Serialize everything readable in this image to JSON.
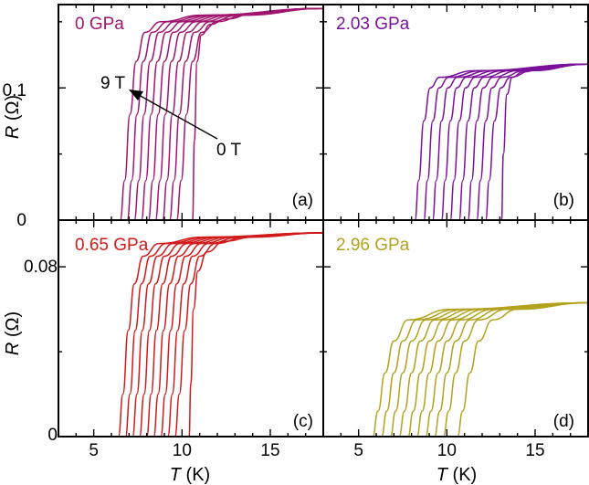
{
  "chart_data": [
    {
      "type": "line",
      "panel": "(a)",
      "pressure_label": "0 GPa",
      "color": "#a0156e",
      "x_range": [
        3,
        18
      ],
      "y_range": [
        0,
        0.163
      ],
      "x_ticks": [
        "5",
        "10",
        "15"
      ],
      "y_ticks": [
        {
          "value": 0,
          "label": "0"
        },
        {
          "value": 0.1,
          "label": "0.1"
        }
      ],
      "y_axis_label": "R (Ω)",
      "field_arrow": {
        "from_label": "0 T",
        "to_label": "9 T"
      },
      "r_normal": 0.155,
      "normal_slope": 0.0007,
      "series": [
        {
          "field_T": 0,
          "x": [
            10.6,
            10.7,
            10.85,
            11.1,
            11.6,
            12.5,
            14.0,
            18.0
          ],
          "y": [
            0.0,
            0.06,
            0.12,
            0.14,
            0.148,
            0.152,
            0.156,
            0.16
          ]
        },
        {
          "field_T": 1,
          "x": [
            9.7,
            9.95,
            10.25,
            10.6,
            11.1,
            12.0,
            13.5,
            18.0
          ],
          "y": [
            0.0,
            0.03,
            0.08,
            0.12,
            0.142,
            0.15,
            0.155,
            0.16
          ]
        },
        {
          "field_T": 2,
          "x": [
            9.3,
            9.55,
            9.85,
            10.2,
            10.7,
            11.6,
            13.2,
            18.0
          ],
          "y": [
            0.0,
            0.03,
            0.08,
            0.12,
            0.142,
            0.15,
            0.155,
            0.16
          ]
        },
        {
          "field_T": 3,
          "x": [
            8.9,
            9.15,
            9.45,
            9.8,
            10.3,
            11.2,
            12.9,
            18.0
          ],
          "y": [
            0.0,
            0.03,
            0.08,
            0.12,
            0.142,
            0.15,
            0.155,
            0.16
          ]
        },
        {
          "field_T": 4,
          "x": [
            8.5,
            8.75,
            9.05,
            9.4,
            9.9,
            10.8,
            12.6,
            18.0
          ],
          "y": [
            0.0,
            0.03,
            0.08,
            0.12,
            0.142,
            0.15,
            0.155,
            0.16
          ]
        },
        {
          "field_T": 5,
          "x": [
            8.1,
            8.35,
            8.65,
            9.0,
            9.5,
            10.4,
            12.3,
            18.0
          ],
          "y": [
            0.0,
            0.03,
            0.08,
            0.12,
            0.142,
            0.15,
            0.155,
            0.16
          ]
        },
        {
          "field_T": 6,
          "x": [
            7.7,
            7.95,
            8.25,
            8.6,
            9.1,
            10.0,
            12.0,
            18.0
          ],
          "y": [
            0.0,
            0.03,
            0.08,
            0.12,
            0.142,
            0.15,
            0.155,
            0.16
          ]
        },
        {
          "field_T": 7,
          "x": [
            7.3,
            7.55,
            7.85,
            8.2,
            8.7,
            9.6,
            11.7,
            18.0
          ],
          "y": [
            0.0,
            0.03,
            0.08,
            0.12,
            0.142,
            0.15,
            0.155,
            0.16
          ]
        },
        {
          "field_T": 8,
          "x": [
            6.9,
            7.15,
            7.45,
            7.8,
            8.3,
            9.2,
            11.4,
            18.0
          ],
          "y": [
            0.0,
            0.03,
            0.08,
            0.12,
            0.142,
            0.15,
            0.155,
            0.16
          ]
        },
        {
          "field_T": 9,
          "x": [
            6.5,
            6.75,
            7.05,
            7.4,
            7.9,
            8.8,
            11.1,
            18.0
          ],
          "y": [
            0.0,
            0.03,
            0.08,
            0.12,
            0.142,
            0.15,
            0.155,
            0.16
          ]
        }
      ]
    },
    {
      "type": "line",
      "panel": "(b)",
      "pressure_label": "2.03 GPa",
      "color": "#7a119a",
      "x_range": [
        3,
        18
      ],
      "y_range": [
        0,
        0.163
      ],
      "x_ticks": [
        "5",
        "10",
        "15"
      ],
      "y_ticks": [
        {
          "value": 0,
          "label": ""
        },
        {
          "value": 0.1,
          "label": ""
        }
      ],
      "y_axis_label": "",
      "series": [
        {
          "field_T": 0,
          "x": [
            13.1,
            13.2,
            13.4,
            13.7,
            14.3,
            15.5,
            18.0
          ],
          "y": [
            0.0,
            0.05,
            0.095,
            0.108,
            0.112,
            0.115,
            0.118
          ]
        },
        {
          "field_T": 1,
          "x": [
            12.2,
            12.4,
            12.7,
            13.05,
            13.6,
            14.8,
            18.0
          ],
          "y": [
            0.0,
            0.03,
            0.075,
            0.1,
            0.108,
            0.113,
            0.118
          ]
        },
        {
          "field_T": 2,
          "x": [
            11.7,
            11.9,
            12.2,
            12.55,
            13.1,
            14.4,
            18.0
          ],
          "y": [
            0.0,
            0.03,
            0.075,
            0.1,
            0.108,
            0.113,
            0.118
          ]
        },
        {
          "field_T": 3,
          "x": [
            11.2,
            11.4,
            11.7,
            12.05,
            12.6,
            14.0,
            18.0
          ],
          "y": [
            0.0,
            0.03,
            0.075,
            0.1,
            0.108,
            0.113,
            0.118
          ]
        },
        {
          "field_T": 4,
          "x": [
            10.7,
            10.9,
            11.2,
            11.55,
            12.1,
            13.6,
            18.0
          ],
          "y": [
            0.0,
            0.03,
            0.075,
            0.1,
            0.108,
            0.113,
            0.118
          ]
        },
        {
          "field_T": 5,
          "x": [
            10.2,
            10.4,
            10.7,
            11.05,
            11.6,
            13.2,
            18.0
          ],
          "y": [
            0.0,
            0.03,
            0.075,
            0.1,
            0.108,
            0.113,
            0.118
          ]
        },
        {
          "field_T": 6,
          "x": [
            9.7,
            9.9,
            10.2,
            10.55,
            11.1,
            12.8,
            18.0
          ],
          "y": [
            0.0,
            0.03,
            0.075,
            0.1,
            0.108,
            0.113,
            0.118
          ]
        },
        {
          "field_T": 7,
          "x": [
            9.2,
            9.4,
            9.7,
            10.05,
            10.6,
            12.4,
            18.0
          ],
          "y": [
            0.0,
            0.03,
            0.075,
            0.1,
            0.108,
            0.113,
            0.118
          ]
        },
        {
          "field_T": 8,
          "x": [
            8.7,
            8.9,
            9.2,
            9.55,
            10.1,
            12.0,
            18.0
          ],
          "y": [
            0.0,
            0.03,
            0.075,
            0.1,
            0.108,
            0.113,
            0.118
          ]
        },
        {
          "field_T": 9,
          "x": [
            8.2,
            8.4,
            8.7,
            9.05,
            9.6,
            11.6,
            18.0
          ],
          "y": [
            0.0,
            0.03,
            0.075,
            0.1,
            0.108,
            0.113,
            0.118
          ]
        }
      ]
    },
    {
      "type": "line",
      "panel": "(c)",
      "pressure_label": "0.65 GPa",
      "color": "#d11a1a",
      "x_range": [
        3,
        18
      ],
      "y_range": [
        0,
        0.102
      ],
      "x_ticks": [
        "5",
        "10",
        "15"
      ],
      "y_ticks": [
        {
          "value": 0,
          "label": "0"
        },
        {
          "value": 0.08,
          "label": "0.08"
        }
      ],
      "y_axis_label": "R (Ω)",
      "x_axis_label": "T (K)",
      "series": [
        {
          "field_T": 0,
          "x": [
            10.4,
            10.5,
            10.65,
            10.9,
            11.4,
            12.4,
            14.0,
            18.0
          ],
          "y": [
            0.0,
            0.025,
            0.06,
            0.078,
            0.087,
            0.092,
            0.094,
            0.096
          ]
        },
        {
          "field_T": 1,
          "x": [
            9.6,
            9.85,
            10.15,
            10.5,
            11.0,
            11.9,
            13.6,
            18.0
          ],
          "y": [
            0.0,
            0.02,
            0.05,
            0.072,
            0.085,
            0.091,
            0.094,
            0.096
          ]
        },
        {
          "field_T": 2,
          "x": [
            9.2,
            9.45,
            9.75,
            10.1,
            10.6,
            11.5,
            13.3,
            18.0
          ],
          "y": [
            0.0,
            0.02,
            0.05,
            0.072,
            0.085,
            0.091,
            0.094,
            0.096
          ]
        },
        {
          "field_T": 3,
          "x": [
            8.8,
            9.05,
            9.35,
            9.7,
            10.2,
            11.1,
            13.0,
            18.0
          ],
          "y": [
            0.0,
            0.02,
            0.05,
            0.072,
            0.085,
            0.091,
            0.094,
            0.096
          ]
        },
        {
          "field_T": 4,
          "x": [
            8.4,
            8.65,
            8.95,
            9.3,
            9.8,
            10.7,
            12.7,
            18.0
          ],
          "y": [
            0.0,
            0.02,
            0.05,
            0.072,
            0.085,
            0.091,
            0.094,
            0.096
          ]
        },
        {
          "field_T": 5,
          "x": [
            8.0,
            8.25,
            8.55,
            8.9,
            9.4,
            10.3,
            12.4,
            18.0
          ],
          "y": [
            0.0,
            0.02,
            0.05,
            0.072,
            0.085,
            0.091,
            0.094,
            0.096
          ]
        },
        {
          "field_T": 6,
          "x": [
            7.6,
            7.85,
            8.15,
            8.5,
            9.0,
            9.9,
            12.1,
            18.0
          ],
          "y": [
            0.0,
            0.02,
            0.05,
            0.072,
            0.085,
            0.091,
            0.094,
            0.096
          ]
        },
        {
          "field_T": 7,
          "x": [
            7.2,
            7.45,
            7.75,
            8.1,
            8.6,
            9.5,
            11.8,
            18.0
          ],
          "y": [
            0.0,
            0.02,
            0.05,
            0.072,
            0.085,
            0.091,
            0.094,
            0.096
          ]
        },
        {
          "field_T": 8,
          "x": [
            6.8,
            7.05,
            7.35,
            7.7,
            8.2,
            9.1,
            11.5,
            18.0
          ],
          "y": [
            0.0,
            0.02,
            0.05,
            0.072,
            0.085,
            0.091,
            0.094,
            0.096
          ]
        },
        {
          "field_T": 9,
          "x": [
            6.4,
            6.65,
            6.95,
            7.3,
            7.8,
            8.7,
            11.2,
            18.0
          ],
          "y": [
            0.0,
            0.02,
            0.05,
            0.072,
            0.085,
            0.091,
            0.094,
            0.096
          ]
        }
      ]
    },
    {
      "type": "line",
      "panel": "(d)",
      "pressure_label": "2.96 GPa",
      "color": "#b3a21f",
      "x_range": [
        3,
        18
      ],
      "y_range": [
        0,
        0.102
      ],
      "x_ticks": [
        "5",
        "10",
        "15"
      ],
      "y_ticks": [
        {
          "value": 0,
          "label": ""
        },
        {
          "value": 0.08,
          "label": ""
        }
      ],
      "y_axis_label": "",
      "x_axis_label": "T (K)",
      "series": [
        {
          "field_T": 0,
          "x": [
            10.6,
            10.9,
            11.3,
            11.8,
            12.6,
            14.0,
            18.0
          ],
          "y": [
            0.0,
            0.012,
            0.03,
            0.045,
            0.055,
            0.06,
            0.063
          ]
        },
        {
          "field_T": 1,
          "x": [
            9.8,
            10.1,
            10.5,
            11.0,
            11.8,
            13.4,
            18.0
          ],
          "y": [
            0.0,
            0.012,
            0.03,
            0.045,
            0.055,
            0.06,
            0.063
          ]
        },
        {
          "field_T": 2,
          "x": [
            9.3,
            9.6,
            10.0,
            10.5,
            11.3,
            13.0,
            18.0
          ],
          "y": [
            0.0,
            0.012,
            0.03,
            0.045,
            0.055,
            0.06,
            0.063
          ]
        },
        {
          "field_T": 3,
          "x": [
            8.8,
            9.1,
            9.5,
            10.0,
            10.8,
            12.6,
            18.0
          ],
          "y": [
            0.0,
            0.012,
            0.03,
            0.045,
            0.055,
            0.06,
            0.063
          ]
        },
        {
          "field_T": 4,
          "x": [
            8.3,
            8.6,
            9.0,
            9.5,
            10.3,
            12.2,
            18.0
          ],
          "y": [
            0.0,
            0.012,
            0.03,
            0.045,
            0.055,
            0.06,
            0.063
          ]
        },
        {
          "field_T": 5,
          "x": [
            7.8,
            8.1,
            8.5,
            9.0,
            9.8,
            11.8,
            18.0
          ],
          "y": [
            0.0,
            0.012,
            0.03,
            0.045,
            0.055,
            0.06,
            0.063
          ]
        },
        {
          "field_T": 6,
          "x": [
            7.3,
            7.6,
            8.0,
            8.5,
            9.3,
            11.4,
            18.0
          ],
          "y": [
            0.0,
            0.012,
            0.03,
            0.045,
            0.055,
            0.06,
            0.063
          ]
        },
        {
          "field_T": 7,
          "x": [
            6.8,
            7.1,
            7.5,
            8.0,
            8.8,
            11.0,
            18.0
          ],
          "y": [
            0.0,
            0.012,
            0.03,
            0.045,
            0.055,
            0.06,
            0.063
          ]
        },
        {
          "field_T": 8,
          "x": [
            6.3,
            6.6,
            7.0,
            7.5,
            8.3,
            10.6,
            18.0
          ],
          "y": [
            0.0,
            0.012,
            0.03,
            0.045,
            0.055,
            0.06,
            0.063
          ]
        },
        {
          "field_T": 9,
          "x": [
            5.8,
            6.1,
            6.5,
            7.0,
            7.8,
            10.2,
            18.0
          ],
          "y": [
            0.0,
            0.012,
            0.03,
            0.045,
            0.055,
            0.06,
            0.063
          ]
        }
      ]
    }
  ]
}
